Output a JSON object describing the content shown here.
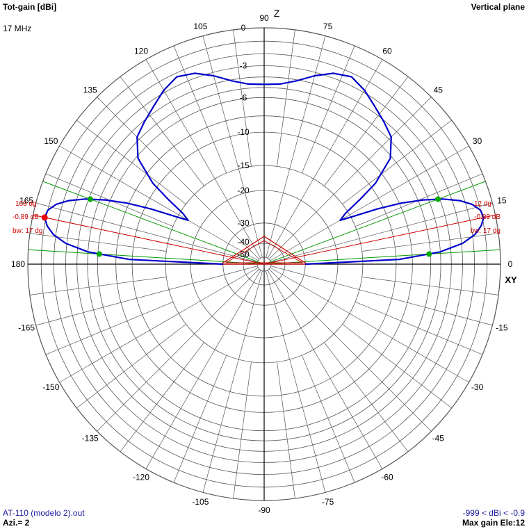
{
  "header": {
    "title_left": "Tot-gain [dBi]",
    "frequency": "17 MHz",
    "title_right": "Vertical plane"
  },
  "footer": {
    "file": "AT-110 (modelo 2).out",
    "azimuth": "Azi.= 2",
    "range": "-999 < dBi < -0.9",
    "max_gain": "Max gain Ele:12"
  },
  "chart_data": {
    "type": "polar",
    "title": "Tot-gain [dBi]",
    "subtitle": "Vertical plane",
    "angle_labels": [
      "0",
      "15",
      "30",
      "45",
      "60",
      "75",
      "90",
      "105",
      "120",
      "135",
      "150",
      "165",
      "180",
      "-165",
      "-150",
      "-135",
      "-120",
      "-105",
      "-90",
      "-75",
      "-60",
      "-45",
      "-30",
      "-15"
    ],
    "axis_labels": {
      "top": "Z",
      "right": "XY"
    },
    "radial_labels": [
      "0",
      "-3",
      "-6",
      "-10",
      "-15",
      "-20",
      "-30",
      "-40",
      "-50"
    ],
    "radial_scale": "ARRL log (0.89 dB per ring step)",
    "max_gain_dbi": -0.89,
    "max_gain_elevation_deg": 12,
    "beamwidth_deg": 17,
    "series": [
      {
        "name": "Tot-gain",
        "color": "#0000cc",
        "pattern_deg_vs_dBi": [
          [
            0,
            -30
          ],
          [
            2,
            -9.6
          ],
          [
            4,
            -5.0
          ],
          [
            6,
            -2.9
          ],
          [
            8,
            -1.8
          ],
          [
            10,
            -1.2
          ],
          [
            12,
            -0.89
          ],
          [
            14,
            -1.0
          ],
          [
            16,
            -1.5
          ],
          [
            18,
            -2.4
          ],
          [
            20,
            -3.7
          ],
          [
            22,
            -5.5
          ],
          [
            24,
            -7.8
          ],
          [
            26,
            -10.8
          ],
          [
            28,
            -14.3
          ],
          [
            30,
            -17.0
          ],
          [
            32,
            -15.5
          ],
          [
            34,
            -12.3
          ],
          [
            36,
            -9.3
          ],
          [
            40,
            -6.2
          ],
          [
            45,
            -4.7
          ],
          [
            50,
            -4.1
          ],
          [
            55,
            -3.5
          ],
          [
            60,
            -2.8
          ],
          [
            65,
            -2.3
          ],
          [
            70,
            -2.6
          ],
          [
            75,
            -3.3
          ],
          [
            80,
            -4.1
          ],
          [
            85,
            -4.6
          ],
          [
            90,
            -4.7
          ]
        ]
      }
    ],
    "markers": {
      "left": [
        "168 dg",
        "-0.89 dB",
        "bw: 17 dg"
      ],
      "right": [
        "12 dg",
        "-0.89 dB",
        "bw: 17 dg"
      ]
    },
    "colors": {
      "pattern": "#0000cc",
      "grid": "#555555",
      "max_line": "#cc0000",
      "beam_lines": "#009900",
      "beam_points": "#00aa00",
      "max_point": "#ee0000",
      "text_red": "#cc0000"
    }
  }
}
